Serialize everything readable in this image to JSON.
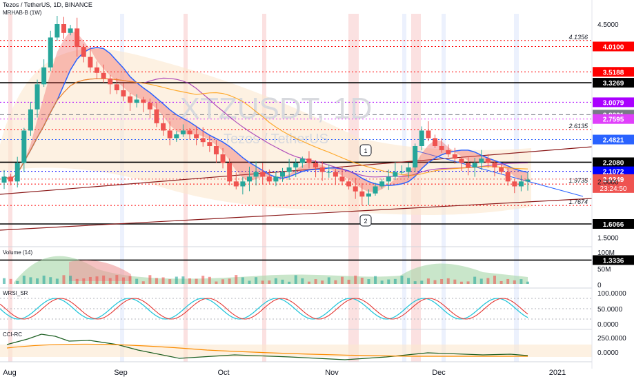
{
  "header": {
    "title": "Tezos / TetherUS, 1D, BINANCE",
    "indicator": "MRHAB-B (1W)"
  },
  "watermark": {
    "symbol": "XTZUSDT, 1D",
    "name": "Tezos / TetherUS"
  },
  "colors": {
    "red_level": "#ff0000",
    "black_level": "#000000",
    "blue_label": "#2962ff",
    "magenta_label": "#e040fb",
    "purple_label": "#aa00ff",
    "gray_label": "#787b86",
    "dark_red_trend": "#8b1a1a",
    "ha_green": "#26a69a",
    "ha_red": "#ef5350",
    "ema_blue": "#2962ff",
    "ema_purple": "#9c27b0",
    "ema_orange": "#ff9800"
  },
  "panes": {
    "volume": {
      "title": "Volume (14)",
      "ticks": [
        "100M",
        "50M",
        "0"
      ]
    },
    "wrsi": {
      "title": "WRSI_SR",
      "ticks": [
        "100.0000",
        "50.0000",
        "0.0000"
      ]
    },
    "cci": {
      "title": "CCI-RC",
      "ticks": [
        "250.0000",
        "0.0000"
      ]
    }
  },
  "time_axis": [
    "Aug",
    "Sep",
    "Oct",
    "Nov",
    "Dec",
    "2021"
  ],
  "chart_data": {
    "type": "candlestick",
    "title": "Tezos / TetherUS, 1D, BINANCE",
    "price_axis_ticks": [
      4.5,
      2.0,
      1.5
    ],
    "price_axis_ticks_text": [
      "4.5000",
      "2.0000",
      "1.5000"
    ],
    "levels": [
      {
        "value": 4.1356,
        "label": "4.1356",
        "style": "dotted",
        "color": "#ff0000",
        "tag": false
      },
      {
        "value": 4.01,
        "label": "4.0100",
        "style": "dotted",
        "color": "#ff0000",
        "tag": true
      },
      {
        "value": 3.5188,
        "label": "3.5188",
        "style": "dotted",
        "color": "#ff0000",
        "tag": true
      },
      {
        "value": 3.3269,
        "label": "3.3269",
        "style": "solid",
        "color": "#000000",
        "tag": true
      },
      {
        "value": 3.0079,
        "label": "3.0079",
        "style": "dotted",
        "color": "#aa00ff",
        "tag": true
      },
      {
        "value": 2.8221,
        "label": "2.8221",
        "style": "dashed",
        "color": "#787b86",
        "tag": true
      },
      {
        "value": 2.7595,
        "label": "2.7595",
        "style": "dotted",
        "color": "#e040fb",
        "tag": true
      },
      {
        "value": 2.6135,
        "label": "2.6135",
        "style": "dotted",
        "color": "#ff0000",
        "tag": false
      },
      {
        "value": 2.4821,
        "label": "2.4821",
        "style": "dotted",
        "color": "#2962ff",
        "tag": true
      },
      {
        "value": 2.208,
        "label": "2.2080",
        "style": "solid",
        "color": "#000000",
        "tag": true
      },
      {
        "value": 2.1072,
        "label": "2.1072",
        "style": "dotted",
        "color": "#0000ff",
        "tag": true
      },
      {
        "value": 2.0249,
        "label": "2.0249",
        "style": "dotted",
        "color": "#ef5350",
        "tag": true
      },
      {
        "value": 1.9735,
        "label": "1.9735",
        "style": "dotted",
        "color": "#ff0000",
        "tag": false
      },
      {
        "value": 1.7674,
        "label": "1.7674",
        "style": "dotted",
        "color": "#ff0000",
        "tag": false
      },
      {
        "value": 1.6066,
        "label": "1.6066",
        "style": "solid",
        "color": "#000000",
        "tag": true
      },
      {
        "value": 1.3336,
        "label": "1.3336",
        "style": "solid",
        "color": "#000000",
        "tag": true
      }
    ],
    "countdown": "23:24:50",
    "annotations": [
      "1",
      "2"
    ],
    "close_approx": [
      2.05,
      2.0,
      2.2,
      2.6,
      2.9,
      3.3,
      3.6,
      4.2,
      4.5,
      4.3,
      4.4,
      4.0,
      3.8,
      3.6,
      3.5,
      3.4,
      3.3,
      3.2,
      3.1,
      3.0,
      3.05,
      3.0,
      2.9,
      2.7,
      2.6,
      2.5,
      2.55,
      2.6,
      2.55,
      2.5,
      2.45,
      2.4,
      2.3,
      2.2,
      2.0,
      1.95,
      2.0,
      2.05,
      2.1,
      2.05,
      2.0,
      2.05,
      2.1,
      2.15,
      2.2,
      2.25,
      2.2,
      2.15,
      2.1,
      2.1,
      2.05,
      2.0,
      1.95,
      1.9,
      1.85,
      1.88,
      1.95,
      2.0,
      2.05,
      2.1,
      2.1,
      2.15,
      2.4,
      2.6,
      2.5,
      2.4,
      2.35,
      2.3,
      2.25,
      2.2,
      2.15,
      2.2,
      2.25,
      2.2,
      2.15,
      2.1,
      2.0,
      1.95,
      2.0,
      2.02
    ]
  }
}
